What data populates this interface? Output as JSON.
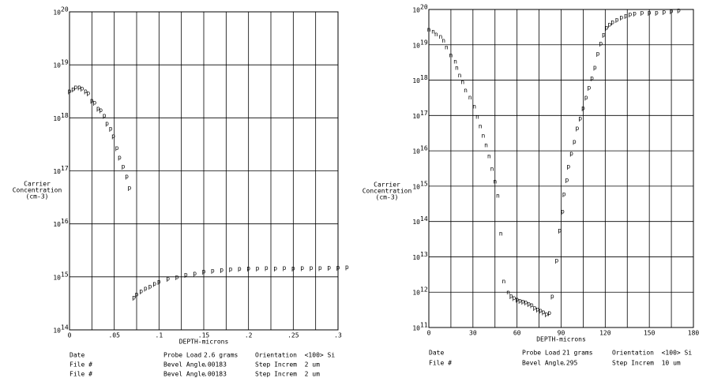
{
  "chart_data": [
    {
      "type": "scatter",
      "yscale": "log",
      "grid": true,
      "xlabel": "DEPTH-microns",
      "ylabel": [
        "Carrier",
        "Concentration",
        "(cm-3)"
      ],
      "xlim": [
        0,
        0.3
      ],
      "xticks": [
        0,
        {
          "value": 0.05,
          "label": ".05"
        },
        {
          "value": 0.1,
          "label": ".1"
        },
        {
          "value": 0.15,
          "label": ".15"
        },
        {
          "value": 0.2,
          "label": ".2"
        },
        {
          "value": 0.25,
          "label": ".25"
        },
        {
          "value": 0.3,
          "label": ".3"
        }
      ],
      "xgrid": [
        0.025,
        0.075,
        0.125,
        0.175,
        0.225,
        0.275
      ],
      "ylim": [
        100000000000000.0,
        1e+20
      ],
      "yticks": [
        {
          "value": 100000000000000.0,
          "label": "10",
          "exponent": "14"
        },
        {
          "value": 1000000000000000.0,
          "label": "10",
          "exponent": "15"
        },
        {
          "value": 1e+16,
          "label": "10",
          "exponent": "16"
        },
        {
          "value": 1e+17,
          "label": "10",
          "exponent": "17"
        },
        {
          "value": 1e+18,
          "label": "10",
          "exponent": "18"
        },
        {
          "value": 1e+19,
          "label": "10",
          "exponent": "19"
        },
        {
          "value": 1e+20,
          "label": "10",
          "exponent": "20"
        }
      ],
      "series": [
        {
          "name": "p",
          "color": "#000000",
          "x": [
            0,
            0.004,
            0.007,
            0.011,
            0.014,
            0.018,
            0.021,
            0.025,
            0.028,
            0.032,
            0.035,
            0.039,
            0.042,
            0.046,
            0.049,
            0.053,
            0.056,
            0.06,
            0.064,
            0.067
          ],
          "values": [
            3.2e+18,
            3.5e+18,
            3.8e+18,
            3.8e+18,
            3.6e+18,
            3.2e+18,
            2.95e+18,
            2.1e+18,
            1.95e+18,
            1.5e+18,
            1.4e+18,
            1.1e+18,
            7.8e+17,
            6.3e+17,
            4.5e+17,
            2.7e+17,
            1.8e+17,
            1.2e+17,
            7.8e+16,
            4.8e+16
          ]
        },
        {
          "name": "p",
          "color": "#000000",
          "x": [
            0.072,
            0.075,
            0.08,
            0.085,
            0.09,
            0.095,
            0.1,
            0.11,
            0.12,
            0.13,
            0.14,
            0.15,
            0.16,
            0.17,
            0.18,
            0.19,
            0.2,
            0.21,
            0.22,
            0.23,
            0.24,
            0.25,
            0.26,
            0.27,
            0.28,
            0.29,
            0.3,
            0.31
          ],
          "values": [
            410000000000000.0,
            470000000000000.0,
            540000000000000.0,
            600000000000000.0,
            660000000000000.0,
            740000000000000.0,
            810000000000000.0,
            930000000000000.0,
            1000000000000000.0,
            1100000000000000.0,
            1170000000000000.0,
            1260000000000000.0,
            1300000000000000.0,
            1350000000000000.0,
            1400000000000000.0,
            1420000000000000.0,
            1450000000000000.0,
            1450000000000000.0,
            1470000000000000.0,
            1450000000000000.0,
            1470000000000000.0,
            1450000000000000.0,
            1470000000000000.0,
            1480000000000000.0,
            1470000000000000.0,
            1500000000000000.0,
            1500000000000000.0,
            1520000000000000.0
          ]
        }
      ],
      "info": [
        [
          "Date",
          "Probe Load",
          "2.6 grams",
          "Orientation  <100> Si"
        ],
        [
          "File #",
          "Bevel Angle",
          ".00183",
          "Step Increm  2 um"
        ],
        [
          "File #",
          "Bevel Angle",
          ".00183",
          "Step Increm  2 um"
        ]
      ]
    },
    {
      "type": "scatter",
      "yscale": "log",
      "grid": true,
      "xlabel": "DEPTH-microns",
      "ylabel": [
        "Carrier",
        "Concentration",
        "(cm-3)"
      ],
      "xlim": [
        0,
        180
      ],
      "xticks": [
        0,
        30,
        60,
        90,
        120,
        150,
        180
      ],
      "xgrid": [
        15,
        45,
        75,
        105,
        135,
        165
      ],
      "ylim": [
        100000000000.0,
        1e+20
      ],
      "yticks": [
        {
          "value": 100000000000.0,
          "label": "10",
          "exponent": "11"
        },
        {
          "value": 1000000000000.0,
          "label": "10",
          "exponent": "12"
        },
        {
          "value": 10000000000000.0,
          "label": "10",
          "exponent": "13"
        },
        {
          "value": 100000000000000.0,
          "label": "10",
          "exponent": "14"
        },
        {
          "value": 1000000000000000.0,
          "label": "10",
          "exponent": "15"
        },
        {
          "value": 1e+16,
          "label": "10",
          "exponent": "16"
        },
        {
          "value": 1e+17,
          "label": "10",
          "exponent": "17"
        },
        {
          "value": 1e+18,
          "label": "10",
          "exponent": "18"
        },
        {
          "value": 1e+19,
          "label": "10",
          "exponent": "19"
        },
        {
          "value": 1e+20,
          "label": "10",
          "exponent": "20"
        }
      ],
      "series": [
        {
          "name": "n",
          "color": "#000000",
          "x": [
            0,
            3,
            5,
            8,
            10,
            12,
            15,
            18,
            19,
            21,
            23,
            25,
            28,
            31,
            33,
            35,
            37,
            39,
            41,
            43,
            45,
            47,
            49,
            51,
            54
          ],
          "values": [
            2.7e+19,
            2.4e+19,
            2e+19,
            1.7e+19,
            1.3e+19,
            8.5e+18,
            5.1e+18,
            3.4e+18,
            2.2e+18,
            1.35e+18,
            8.9e+17,
            5.2e+17,
            3.2e+17,
            1.8e+17,
            9.1e+16,
            5e+16,
            2.7e+16,
            1.45e+16,
            7100000000000000.0,
            3100000000000000.0,
            1350000000000000.0,
            540000000000000.0,
            46000000000000.0,
            2000000000000.0,
            980000000000.0
          ]
        },
        {
          "name": "p",
          "color": "#000000",
          "x": [
            56,
            58,
            60,
            62,
            64,
            66,
            68,
            70,
            72,
            74,
            76,
            78,
            80,
            82,
            84,
            87,
            89,
            91,
            92,
            94,
            95,
            97,
            99,
            101,
            103,
            105,
            107,
            109,
            111,
            113,
            115,
            117,
            119,
            121,
            123,
            125,
            128,
            131,
            134,
            137,
            140,
            145,
            150,
            155,
            160,
            165,
            170
          ],
          "values": [
            790000000000.0,
            680000000000.0,
            620000000000.0,
            580000000000.0,
            550000000000.0,
            520000000000.0,
            470000000000.0,
            430000000000.0,
            360000000000.0,
            330000000000.0,
            300000000000.0,
            270000000000.0,
            240000000000.0,
            260000000000.0,
            760000000000.0,
            7900000000000.0,
            56000000000000.0,
            190000000000000.0,
            600000000000000.0,
            1500000000000000.0,
            3600000000000000.0,
            8300000000000000.0,
            1.8e+16,
            4.3e+16,
            8.3e+16,
            1.6e+17,
            3.2e+17,
            6.2e+17,
            1.15e+18,
            2.3e+18,
            5.6e+18,
            1.1e+19,
            1.95e+19,
            3.1e+19,
            3.8e+19,
            4.4e+19,
            5.1e+19,
            6e+19,
            6.6e+19,
            7.4e+19,
            7.8e+19,
            8.1e+19,
            8.1e+19,
            8.1e+19,
            8.5e+19,
            9.1e+19,
            9.5e+19
          ]
        }
      ],
      "info": [
        [
          "Date",
          "Probe Load",
          "21 grams",
          "Orientation  <100> Si"
        ],
        [
          "File #",
          "Bevel Angle",
          ".295",
          "Step Increm  10 um"
        ]
      ]
    }
  ]
}
